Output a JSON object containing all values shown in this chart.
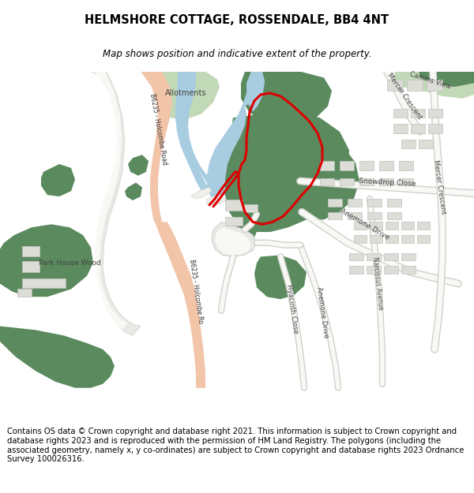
{
  "title": "HELMSHORE COTTAGE, ROSSENDALE, BB4 4NT",
  "subtitle": "Map shows position and indicative extent of the property.",
  "footer": "Contains OS data © Crown copyright and database right 2021. This information is subject to Crown copyright and database rights 2023 and is reproduced with the permission of HM Land Registry. The polygons (including the associated geometry, namely x, y co-ordinates) are subject to Crown copyright and database rights 2023 Ordnance Survey 100026316.",
  "bg_color": "#ffffff",
  "map_bg": "#f8f8f5",
  "road_color_main": "#f2c4a8",
  "green_dark": "#5a8a5e",
  "green_light": "#c2d9b8",
  "blue_water": "#a8cce0",
  "blue_water_dark": "#7ab0cc",
  "road_gray_fill": "#e8e8e4",
  "road_gray_edge": "#d0d0cc",
  "building_fill": "#ddddd8",
  "building_edge": "#c0c0bc",
  "red_boundary": "#dd0000",
  "title_fontsize": 10.5,
  "subtitle_fontsize": 8.5,
  "footer_fontsize": 7.2
}
